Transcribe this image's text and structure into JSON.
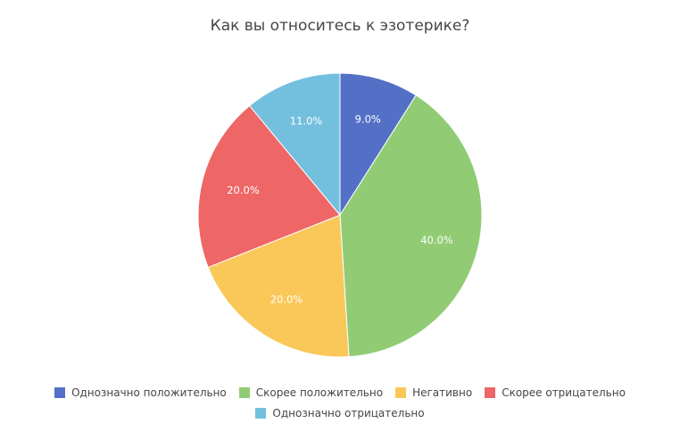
{
  "chart_data": {
    "type": "pie",
    "title": "Как вы относитесь к эзотерике?",
    "legend_position": "bottom",
    "slices": [
      {
        "name": "Однозначно положительно",
        "value": 9.0,
        "label": "9.0%",
        "color": "#5470c6"
      },
      {
        "name": "Скорее положительно",
        "value": 40.0,
        "label": "40.0%",
        "color": "#91cc75"
      },
      {
        "name": "Негативно",
        "value": 20.0,
        "label": "20.0%",
        "color": "#fac858"
      },
      {
        "name": "Скорее отрицательно",
        "value": 20.0,
        "label": "20.0%",
        "color": "#ee6666"
      },
      {
        "name": "Однозначно отрицательно",
        "value": 11.0,
        "label": "11.0%",
        "color": "#73c0de"
      }
    ]
  }
}
